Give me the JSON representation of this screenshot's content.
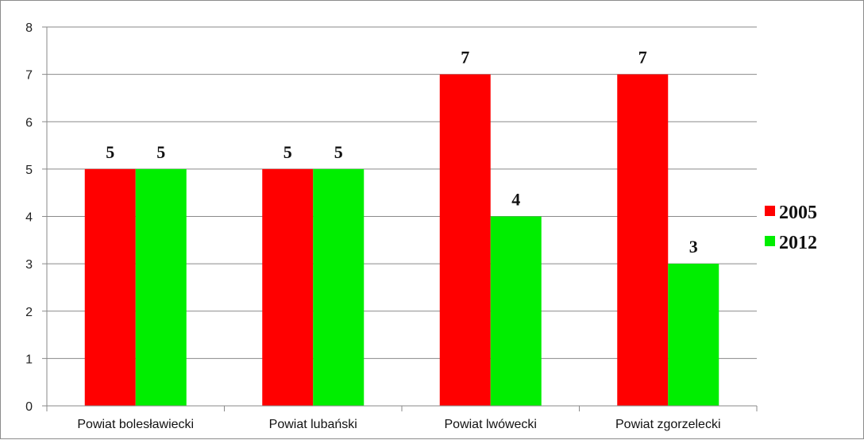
{
  "chart_data": {
    "type": "bar",
    "title": "",
    "xlabel": "",
    "ylabel": "",
    "categories": [
      "Powiat bolesławiecki",
      "Powiat lubański",
      "Powiat lwówecki",
      "Powiat zgorzelecki"
    ],
    "series": [
      {
        "name": "2005",
        "color": "#ff0000",
        "values": [
          5,
          5,
          7,
          7
        ]
      },
      {
        "name": "2012",
        "color": "#00ee00",
        "values": [
          5,
          5,
          4,
          3
        ]
      }
    ],
    "ylim": [
      0,
      8
    ],
    "yticks": [
      0,
      1,
      2,
      3,
      4,
      5,
      6,
      7,
      8
    ],
    "grid": true,
    "legend": "right",
    "data_labels": true
  }
}
